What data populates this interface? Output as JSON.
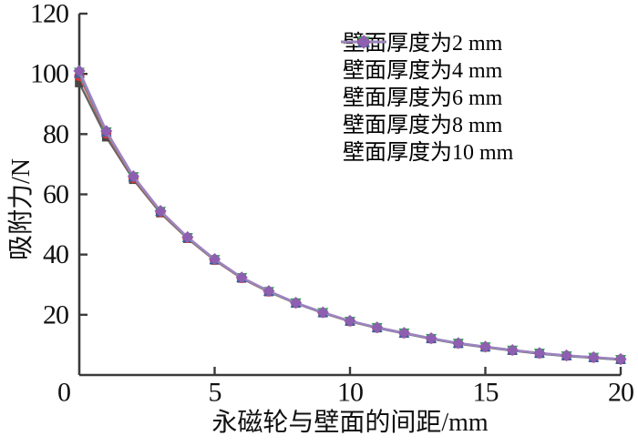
{
  "figure": {
    "background": "#ffffff",
    "text_color": "#111111",
    "axis_color": "#3b3b3b"
  },
  "chart_data": {
    "type": "line",
    "title": "",
    "xlabel": "永磁轮与壁面的间距/mm",
    "ylabel": "吸附力/N",
    "xlim": [
      0,
      20
    ],
    "ylim": [
      0,
      120
    ],
    "x_ticks": [
      0,
      5,
      10,
      15,
      20
    ],
    "y_ticks": [
      20,
      40,
      60,
      80,
      100,
      120
    ],
    "grid": false,
    "legend_position": "inside-top-right",
    "x": [
      0,
      1,
      2,
      3,
      4,
      5,
      6,
      7,
      8,
      9,
      10,
      11,
      12,
      13,
      14,
      15,
      16,
      17,
      18,
      19,
      20
    ],
    "series": [
      {
        "name": "壁面厚度为2 mm",
        "marker": "square",
        "marker_color": "#474747",
        "line_color": "#636363",
        "values": [
          97.0,
          79.0,
          64.9,
          53.8,
          45.3,
          38.1,
          32.1,
          27.6,
          23.8,
          20.6,
          17.8,
          15.6,
          13.8,
          12.0,
          10.4,
          9.2,
          8.1,
          7.1,
          6.3,
          5.7,
          5.1
        ]
      },
      {
        "name": "壁面厚度为4 mm",
        "marker": "circle",
        "marker_color": "#dc3535",
        "line_color": "#e05850",
        "values": [
          99.3,
          80.2,
          65.4,
          54.1,
          45.5,
          38.2,
          32.2,
          27.7,
          23.9,
          20.7,
          17.8,
          15.7,
          13.9,
          12.1,
          10.5,
          9.3,
          8.2,
          7.2,
          6.4,
          5.8,
          5.2
        ]
      },
      {
        "name": "壁面厚度为6 mm",
        "marker": "triangle-up",
        "marker_color": "#3e5fa4",
        "line_color": "#6078b2",
        "values": [
          100.1,
          80.6,
          65.7,
          54.3,
          45.6,
          38.3,
          32.3,
          27.8,
          23.9,
          20.7,
          17.9,
          15.7,
          13.9,
          12.1,
          10.5,
          9.3,
          8.2,
          7.2,
          6.4,
          5.8,
          5.2
        ]
      },
      {
        "name": "壁面厚度为8 mm",
        "marker": "triangle-down",
        "marker_color": "#36a15b",
        "line_color": "#5ead7d",
        "values": [
          100.6,
          80.8,
          65.9,
          54.4,
          45.7,
          38.4,
          32.4,
          27.8,
          24.0,
          20.8,
          17.9,
          15.8,
          14.0,
          12.2,
          10.6,
          9.4,
          8.3,
          7.3,
          6.4,
          5.9,
          5.2
        ]
      },
      {
        "name": "壁面厚度为10 mm",
        "marker": "diamond",
        "marker_color": "#8e5fb0",
        "line_color": "#a083c2",
        "values": [
          101.0,
          81.0,
          66.0,
          54.5,
          45.8,
          38.5,
          32.4,
          27.9,
          24.0,
          20.8,
          18.0,
          15.8,
          14.0,
          12.2,
          10.6,
          9.4,
          8.3,
          7.3,
          6.5,
          5.9,
          5.3
        ]
      }
    ]
  }
}
